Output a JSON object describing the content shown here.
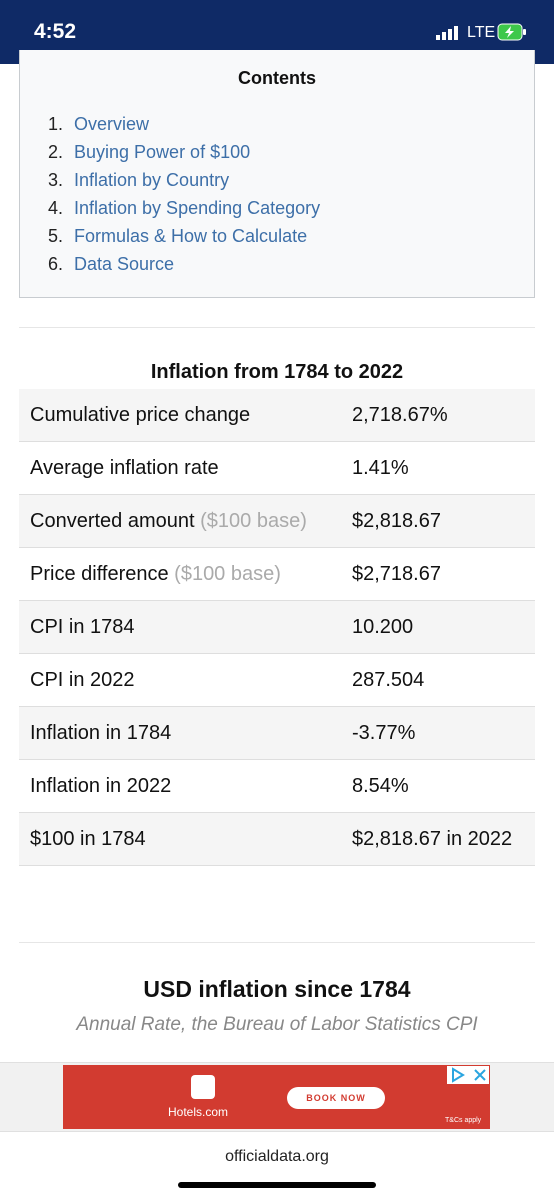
{
  "status": {
    "time": "4:52",
    "network": "LTE"
  },
  "contents": {
    "title": "Contents",
    "items": [
      {
        "number": "1.",
        "label": "Overview"
      },
      {
        "number": "2.",
        "label": "Buying Power of $100"
      },
      {
        "number": "3.",
        "label": "Inflation by Country"
      },
      {
        "number": "4.",
        "label": "Inflation by Spending Category"
      },
      {
        "number": "5.",
        "label": "Formulas & How to Calculate"
      },
      {
        "number": "6.",
        "label": "Data Source"
      }
    ]
  },
  "table": {
    "title": "Inflation from 1784 to 2022",
    "rows": [
      {
        "label": "Cumulative price change",
        "value": "2,718.67%"
      },
      {
        "label": "Average inflation rate",
        "value": "1.41%"
      },
      {
        "label": "Converted amount",
        "note": "($100 base)",
        "value": "$2,818.67"
      },
      {
        "label": "Price difference",
        "note": "($100 base)",
        "value": "$2,718.67"
      },
      {
        "label": "CPI in 1784",
        "value": "10.200"
      },
      {
        "label": "CPI in 2022",
        "value": "287.504"
      },
      {
        "label": "Inflation in 1784",
        "value": "-3.77%"
      },
      {
        "label": "Inflation in 2022",
        "value": "8.54%"
      },
      {
        "label": "$100 in 1784",
        "value": "$2,818.67 in 2022"
      }
    ]
  },
  "section": {
    "title": "USD inflation since 1784",
    "subtitle": "Annual Rate, the Bureau of Labor Statistics CPI"
  },
  "ad": {
    "brand": "Hotels.com",
    "button": "BOOK NOW",
    "terms": "T&Cs apply"
  },
  "footer": {
    "url": "officialdata.org"
  }
}
